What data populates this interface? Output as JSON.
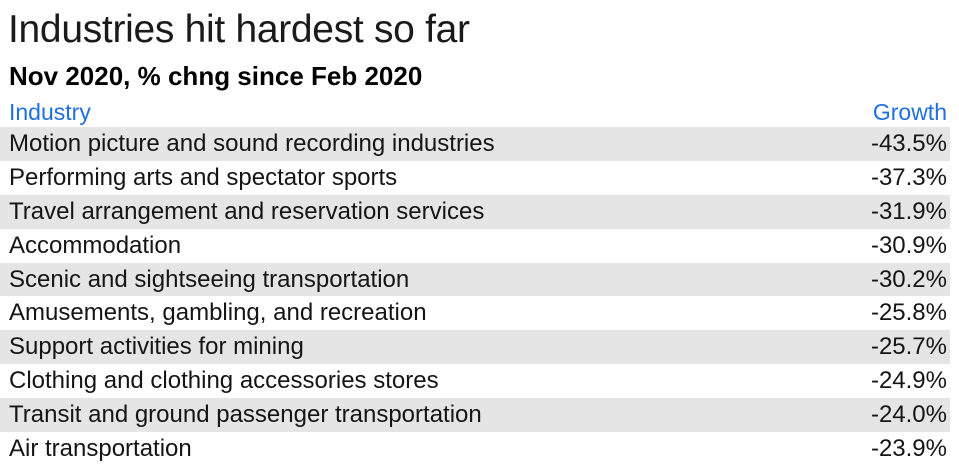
{
  "title": "Industries hit hardest so far",
  "subtitle": "Nov 2020, % chng since Feb 2020",
  "colors": {
    "header_text": "#1f6fe0",
    "row_shade": "#e5e5e5",
    "text": "#151515"
  },
  "chart_data": {
    "type": "table",
    "title": "Industries hit hardest so far",
    "subtitle": "Nov 2020, % chng since Feb 2020",
    "columns": [
      "Industry",
      "Growth"
    ],
    "rows": [
      [
        "Motion picture and sound recording industries",
        "-43.5%"
      ],
      [
        "Performing arts and spectator sports",
        "-37.3%"
      ],
      [
        "Travel arrangement and reservation services",
        "-31.9%"
      ],
      [
        "Accommodation",
        "-30.9%"
      ],
      [
        "Scenic and sightseeing transportation",
        "-30.2%"
      ],
      [
        "Amusements, gambling, and recreation",
        "-25.8%"
      ],
      [
        "Support activities for mining",
        "-25.7%"
      ],
      [
        "Clothing and clothing accessories stores",
        "-24.9%"
      ],
      [
        "Transit and ground passenger transportation",
        "-24.0%"
      ],
      [
        "Air transportation",
        "-23.9%"
      ]
    ]
  }
}
